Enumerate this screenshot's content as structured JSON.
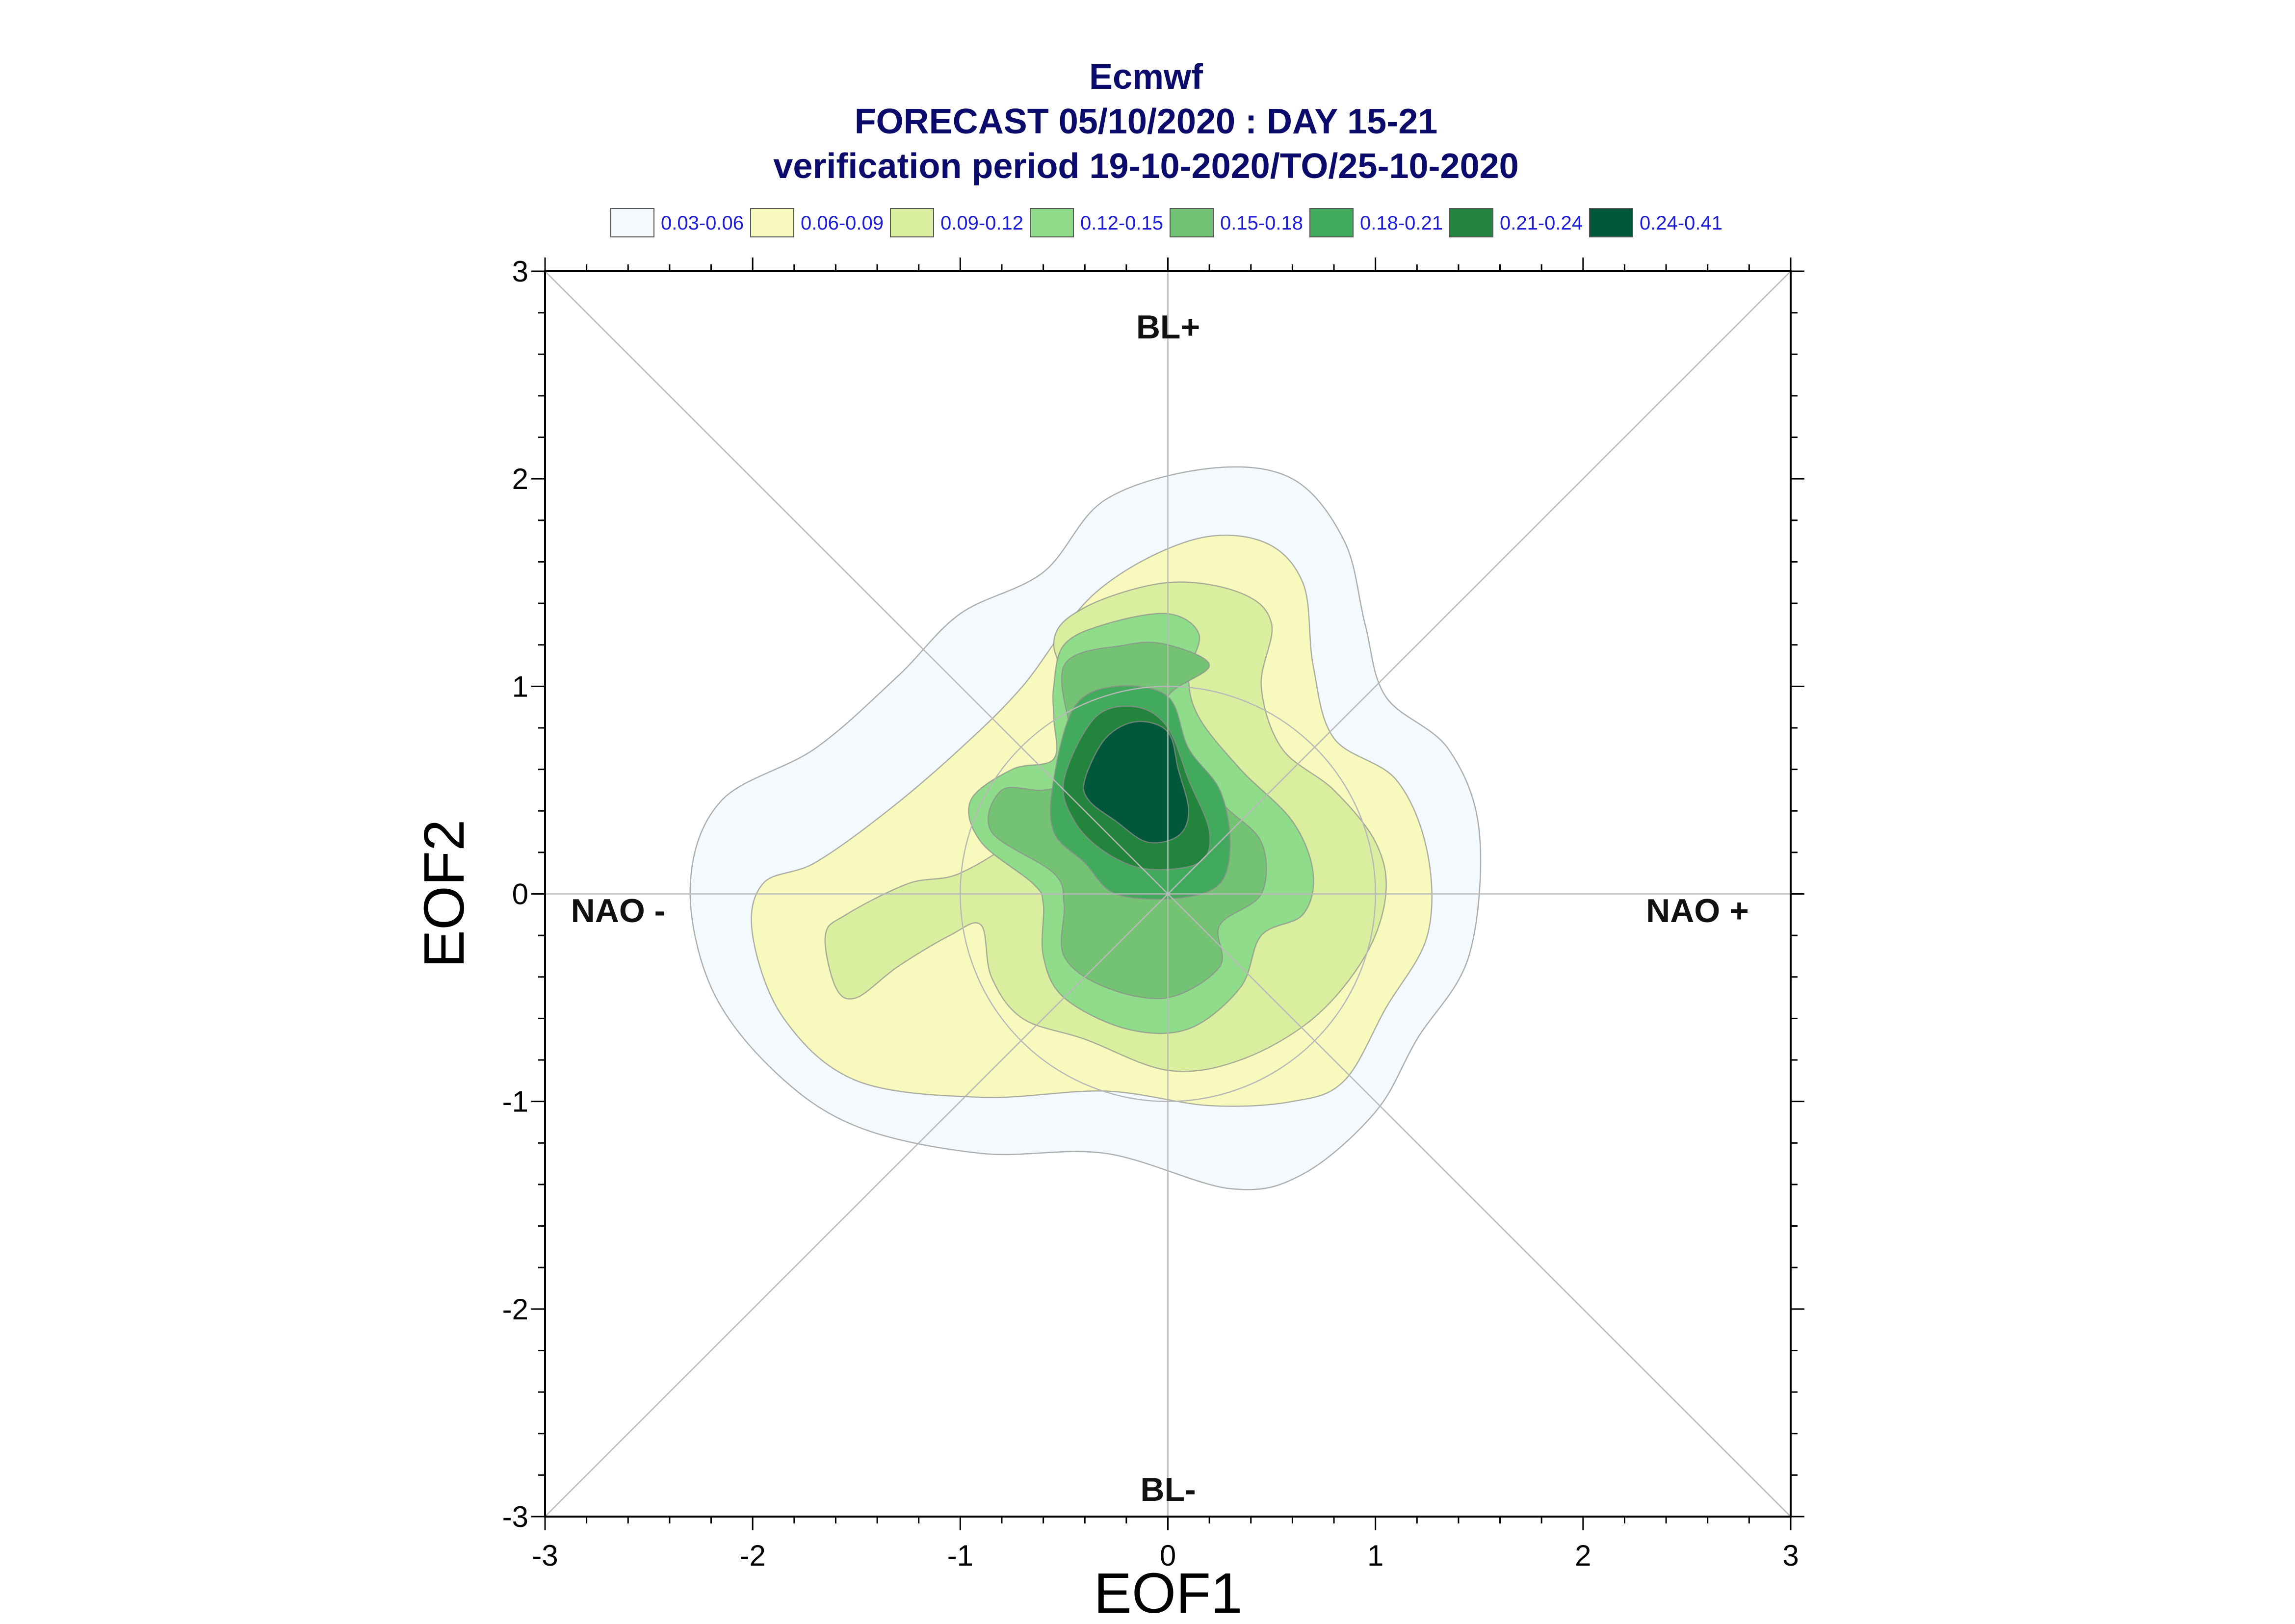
{
  "chart_data": {
    "type": "contour",
    "title": [
      "Ecmwf",
      "FORECAST 05/10/2020 : DAY 15-21",
      "verification period 19-10-2020/TO/25-10-2020"
    ],
    "xlabel": "EOF1",
    "ylabel": "EOF2",
    "xlim": [
      -3,
      3
    ],
    "ylim": [
      -3,
      3
    ],
    "xticks": [
      "-3",
      "-2",
      "-1",
      "0",
      "1",
      "2",
      "3"
    ],
    "yticks": [
      "-3",
      "-2",
      "-1",
      "0",
      "1",
      "2",
      "3"
    ],
    "legend": [
      {
        "label": "0.03-0.06",
        "color": "#f3f9fc"
      },
      {
        "label": "0.06-0.09",
        "color": "#f7fabc"
      },
      {
        "label": "0.09-0.12",
        "color": "#d9ee9f"
      },
      {
        "label": "0.12-0.15",
        "color": "#8fdc8a"
      },
      {
        "label": "0.15-0.18",
        "color": "#74c274"
      },
      {
        "label": "0.18-0.21",
        "color": "#42aa5c"
      },
      {
        "label": "0.21-0.24",
        "color": "#23843d"
      },
      {
        "label": "0.24-0.41",
        "color": "#00573a"
      }
    ],
    "regimes": {
      "top": "BL+",
      "bottom": "BL-",
      "left": "NAO -",
      "right": "NAO +"
    },
    "reference_circle_radius": 1,
    "contour_levels": [
      {
        "level": "0.03-0.06",
        "polygon": [
          [
            -0.6,
            1.55
          ],
          [
            -0.3,
            1.9
          ],
          [
            0.2,
            2.05
          ],
          [
            0.6,
            2.0
          ],
          [
            0.85,
            1.7
          ],
          [
            0.95,
            1.3
          ],
          [
            1.05,
            0.95
          ],
          [
            1.35,
            0.7
          ],
          [
            1.5,
            0.3
          ],
          [
            1.45,
            -0.3
          ],
          [
            1.2,
            -0.7
          ],
          [
            1.0,
            -1.05
          ],
          [
            0.65,
            -1.35
          ],
          [
            0.3,
            -1.42
          ],
          [
            -0.3,
            -1.25
          ],
          [
            -0.9,
            -1.25
          ],
          [
            -1.5,
            -1.12
          ],
          [
            -1.9,
            -0.85
          ],
          [
            -2.2,
            -0.45
          ],
          [
            -2.3,
            0.05
          ],
          [
            -2.15,
            0.45
          ],
          [
            -1.7,
            0.7
          ],
          [
            -1.3,
            1.05
          ],
          [
            -1.0,
            1.35
          ]
        ]
      },
      {
        "level": "0.06-0.09",
        "polygon": [
          [
            -0.7,
            1.0
          ],
          [
            -0.35,
            1.45
          ],
          [
            0.1,
            1.7
          ],
          [
            0.45,
            1.7
          ],
          [
            0.65,
            1.5
          ],
          [
            0.7,
            1.1
          ],
          [
            0.8,
            0.75
          ],
          [
            1.1,
            0.55
          ],
          [
            1.25,
            0.2
          ],
          [
            1.25,
            -0.2
          ],
          [
            1.05,
            -0.55
          ],
          [
            0.85,
            -0.9
          ],
          [
            0.6,
            -1.0
          ],
          [
            0.2,
            -1.02
          ],
          [
            -0.3,
            -0.95
          ],
          [
            -0.9,
            -0.98
          ],
          [
            -1.5,
            -0.9
          ],
          [
            -1.85,
            -0.6
          ],
          [
            -2.0,
            -0.2
          ],
          [
            -1.95,
            0.05
          ],
          [
            -1.7,
            0.15
          ],
          [
            -1.35,
            0.4
          ],
          [
            -1.0,
            0.7
          ]
        ]
      },
      {
        "level": "0.09-0.12",
        "polygon": [
          [
            -0.4,
            0.85
          ],
          [
            -0.55,
            1.2
          ],
          [
            -0.4,
            1.38
          ],
          [
            0.0,
            1.5
          ],
          [
            0.35,
            1.45
          ],
          [
            0.5,
            1.3
          ],
          [
            0.45,
            1.0
          ],
          [
            0.55,
            0.7
          ],
          [
            0.8,
            0.5
          ],
          [
            1.0,
            0.25
          ],
          [
            1.05,
            0.0
          ],
          [
            0.95,
            -0.3
          ],
          [
            0.7,
            -0.6
          ],
          [
            0.35,
            -0.8
          ],
          [
            0.0,
            -0.85
          ],
          [
            -0.4,
            -0.7
          ],
          [
            -0.7,
            -0.6
          ],
          [
            -0.85,
            -0.4
          ],
          [
            -0.9,
            -0.15
          ],
          [
            -1.05,
            -0.2
          ],
          [
            -1.3,
            -0.35
          ],
          [
            -1.5,
            -0.5
          ],
          [
            -1.6,
            -0.45
          ],
          [
            -1.65,
            -0.2
          ],
          [
            -1.55,
            -0.1
          ],
          [
            -1.25,
            0.05
          ],
          [
            -1.0,
            0.1
          ],
          [
            -0.7,
            0.3
          ],
          [
            -0.5,
            0.6
          ]
        ]
      },
      {
        "level": "0.12-0.15",
        "polygon": [
          [
            -0.55,
            0.65
          ],
          [
            -0.55,
            0.85
          ],
          [
            -0.55,
            1.0
          ],
          [
            -0.5,
            1.2
          ],
          [
            -0.3,
            1.3
          ],
          [
            0.0,
            1.35
          ],
          [
            0.15,
            1.25
          ],
          [
            0.1,
            1.05
          ],
          [
            0.15,
            0.85
          ],
          [
            0.35,
            0.6
          ],
          [
            0.6,
            0.35
          ],
          [
            0.7,
            0.1
          ],
          [
            0.65,
            -0.1
          ],
          [
            0.45,
            -0.2
          ],
          [
            0.35,
            -0.45
          ],
          [
            0.1,
            -0.65
          ],
          [
            -0.2,
            -0.65
          ],
          [
            -0.5,
            -0.5
          ],
          [
            -0.6,
            -0.3
          ],
          [
            -0.6,
            -0.05
          ],
          [
            -0.65,
            0.05
          ],
          [
            -0.9,
            0.25
          ],
          [
            -0.95,
            0.45
          ],
          [
            -0.75,
            0.6
          ]
        ]
      },
      {
        "level": "0.15-0.18",
        "polygon": [
          [
            -0.45,
            0.55
          ],
          [
            -0.45,
            0.7
          ],
          [
            -0.5,
            1.1
          ],
          [
            -0.2,
            1.2
          ],
          [
            0.0,
            1.2
          ],
          [
            0.2,
            1.1
          ],
          [
            0.0,
            0.95
          ],
          [
            0.05,
            0.75
          ],
          [
            0.25,
            0.45
          ],
          [
            0.45,
            0.25
          ],
          [
            0.45,
            0.0
          ],
          [
            0.25,
            -0.15
          ],
          [
            0.25,
            -0.35
          ],
          [
            0.0,
            -0.5
          ],
          [
            -0.3,
            -0.45
          ],
          [
            -0.5,
            -0.3
          ],
          [
            -0.5,
            -0.05
          ],
          [
            -0.55,
            0.1
          ],
          [
            -0.85,
            0.3
          ],
          [
            -0.8,
            0.5
          ],
          [
            -0.6,
            0.5
          ]
        ]
      },
      {
        "level": "0.18-0.21",
        "polygon": [
          [
            -0.55,
            0.55
          ],
          [
            -0.45,
            0.9
          ],
          [
            -0.25,
            1.0
          ],
          [
            0.0,
            0.95
          ],
          [
            0.1,
            0.7
          ],
          [
            0.25,
            0.5
          ],
          [
            0.3,
            0.25
          ],
          [
            0.25,
            0.05
          ],
          [
            0.05,
            -0.02
          ],
          [
            -0.25,
            0.0
          ],
          [
            -0.4,
            0.15
          ],
          [
            -0.55,
            0.3
          ]
        ]
      },
      {
        "level": "0.21-0.24",
        "polygon": [
          [
            -0.5,
            0.55
          ],
          [
            -0.35,
            0.85
          ],
          [
            -0.15,
            0.9
          ],
          [
            0.0,
            0.8
          ],
          [
            0.1,
            0.55
          ],
          [
            0.2,
            0.3
          ],
          [
            0.15,
            0.15
          ],
          [
            -0.1,
            0.12
          ],
          [
            -0.3,
            0.2
          ],
          [
            -0.45,
            0.35
          ]
        ]
      },
      {
        "level": "0.24-0.41",
        "polygon": [
          [
            -0.4,
            0.55
          ],
          [
            -0.3,
            0.75
          ],
          [
            -0.15,
            0.83
          ],
          [
            0.0,
            0.78
          ],
          [
            0.05,
            0.6
          ],
          [
            0.1,
            0.4
          ],
          [
            0.05,
            0.28
          ],
          [
            -0.1,
            0.25
          ],
          [
            -0.25,
            0.35
          ],
          [
            -0.38,
            0.45
          ]
        ]
      }
    ]
  }
}
